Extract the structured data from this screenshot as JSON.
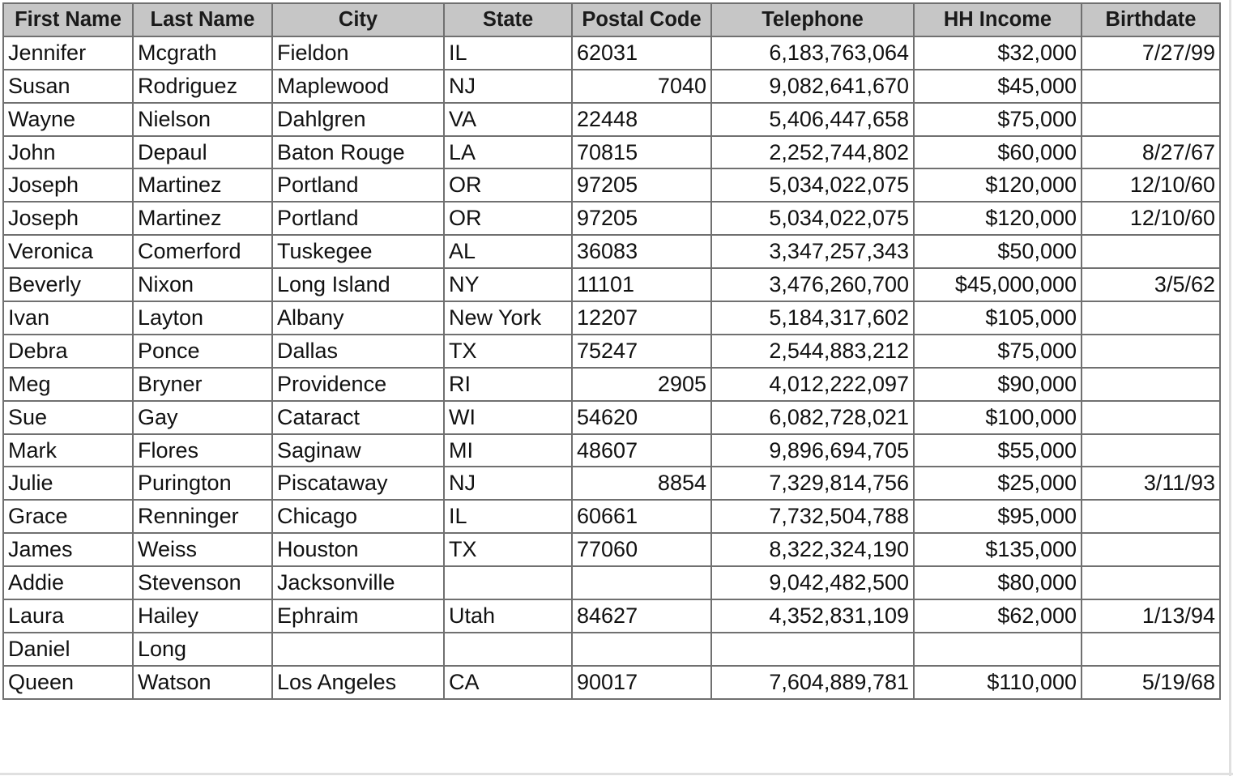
{
  "table": {
    "columns": [
      {
        "key": "first_name",
        "label": "First Name",
        "align": "left"
      },
      {
        "key": "last_name",
        "label": "Last Name",
        "align": "left"
      },
      {
        "key": "city",
        "label": "City",
        "align": "left"
      },
      {
        "key": "state",
        "label": "State",
        "align": "left"
      },
      {
        "key": "postal_code",
        "label": "Postal Code",
        "align": "mixed"
      },
      {
        "key": "telephone",
        "label": "Telephone",
        "align": "right"
      },
      {
        "key": "hh_income",
        "label": "HH Income",
        "align": "right"
      },
      {
        "key": "birthdate",
        "label": "Birthdate",
        "align": "right"
      }
    ],
    "rows": [
      {
        "first_name": "Jennifer",
        "last_name": "Mcgrath",
        "city": "Fieldon",
        "state": "IL",
        "postal_code": "62031",
        "postal_numeric": false,
        "telephone": "6,183,763,064",
        "hh_income": "$32,000",
        "birthdate": "7/27/99"
      },
      {
        "first_name": "Susan",
        "last_name": "Rodriguez",
        "city": "Maplewood",
        "state": "NJ",
        "postal_code": "7040",
        "postal_numeric": true,
        "telephone": "9,082,641,670",
        "hh_income": "$45,000",
        "birthdate": ""
      },
      {
        "first_name": "Wayne",
        "last_name": "Nielson",
        "city": "Dahlgren",
        "state": "VA",
        "postal_code": "22448",
        "postal_numeric": false,
        "telephone": "5,406,447,658",
        "hh_income": "$75,000",
        "birthdate": ""
      },
      {
        "first_name": "John",
        "last_name": "Depaul",
        "city": "Baton Rouge",
        "state": "LA",
        "postal_code": "70815",
        "postal_numeric": false,
        "telephone": "2,252,744,802",
        "hh_income": "$60,000",
        "birthdate": "8/27/67"
      },
      {
        "first_name": "Joseph",
        "last_name": "Martinez",
        "city": "Portland",
        "state": "OR",
        "postal_code": "97205",
        "postal_numeric": false,
        "telephone": "5,034,022,075",
        "hh_income": "$120,000",
        "birthdate": "12/10/60"
      },
      {
        "first_name": "Joseph",
        "last_name": "Martinez",
        "city": "Portland",
        "state": "OR",
        "postal_code": "97205",
        "postal_numeric": false,
        "telephone": "5,034,022,075",
        "hh_income": "$120,000",
        "birthdate": "12/10/60"
      },
      {
        "first_name": "Veronica",
        "last_name": "Comerford",
        "city": "Tuskegee",
        "state": "AL",
        "postal_code": "36083",
        "postal_numeric": false,
        "telephone": "3,347,257,343",
        "hh_income": "$50,000",
        "birthdate": ""
      },
      {
        "first_name": "Beverly",
        "last_name": "Nixon",
        "city": "Long Island",
        "state": "NY",
        "postal_code": "11101",
        "postal_numeric": false,
        "telephone": "3,476,260,700",
        "hh_income": "$45,000,000",
        "birthdate": "3/5/62"
      },
      {
        "first_name": "Ivan",
        "last_name": "Layton",
        "city": "Albany",
        "state": "New York",
        "postal_code": "12207",
        "postal_numeric": false,
        "telephone": "5,184,317,602",
        "hh_income": "$105,000",
        "birthdate": ""
      },
      {
        "first_name": "Debra",
        "last_name": "Ponce",
        "city": "Dallas",
        "state": "TX",
        "postal_code": "75247",
        "postal_numeric": false,
        "telephone": "2,544,883,212",
        "hh_income": "$75,000",
        "birthdate": ""
      },
      {
        "first_name": "Meg",
        "last_name": "Bryner",
        "city": "Providence",
        "state": "RI",
        "postal_code": "2905",
        "postal_numeric": true,
        "telephone": "4,012,222,097",
        "hh_income": "$90,000",
        "birthdate": ""
      },
      {
        "first_name": "Sue",
        "last_name": "Gay",
        "city": "Cataract",
        "state": "WI",
        "postal_code": "54620",
        "postal_numeric": false,
        "telephone": "6,082,728,021",
        "hh_income": "$100,000",
        "birthdate": ""
      },
      {
        "first_name": "Mark",
        "last_name": "Flores",
        "city": "Saginaw",
        "state": "MI",
        "postal_code": "48607",
        "postal_numeric": false,
        "telephone": "9,896,694,705",
        "hh_income": "$55,000",
        "birthdate": ""
      },
      {
        "first_name": "Julie",
        "last_name": "Purington",
        "city": "Piscataway",
        "state": "NJ",
        "postal_code": "8854",
        "postal_numeric": true,
        "telephone": "7,329,814,756",
        "hh_income": "$25,000",
        "birthdate": "3/11/93"
      },
      {
        "first_name": "Grace",
        "last_name": "Renninger",
        "city": "Chicago",
        "state": "IL",
        "postal_code": "60661",
        "postal_numeric": false,
        "telephone": "7,732,504,788",
        "hh_income": "$95,000",
        "birthdate": ""
      },
      {
        "first_name": "James",
        "last_name": "Weiss",
        "city": "Houston",
        "state": "TX",
        "postal_code": "77060",
        "postal_numeric": false,
        "telephone": "8,322,324,190",
        "hh_income": "$135,000",
        "birthdate": ""
      },
      {
        "first_name": "Addie",
        "last_name": "Stevenson",
        "city": "Jacksonville",
        "state": "",
        "postal_code": "",
        "postal_numeric": false,
        "telephone": "9,042,482,500",
        "hh_income": "$80,000",
        "birthdate": ""
      },
      {
        "first_name": "Laura",
        "last_name": "Hailey",
        "city": "Ephraim",
        "state": "Utah",
        "postal_code": "84627",
        "postal_numeric": false,
        "telephone": "4,352,831,109",
        "hh_income": "$62,000",
        "birthdate": "1/13/94"
      },
      {
        "first_name": "Daniel",
        "last_name": "Long",
        "city": "",
        "state": "",
        "postal_code": "",
        "postal_numeric": false,
        "telephone": "",
        "hh_income": "",
        "birthdate": ""
      },
      {
        "first_name": "Queen",
        "last_name": "Watson",
        "city": "Los Angeles",
        "state": "CA",
        "postal_code": "90017",
        "postal_numeric": false,
        "telephone": "7,604,889,781",
        "hh_income": "$110,000",
        "birthdate": "5/19/68"
      }
    ]
  }
}
